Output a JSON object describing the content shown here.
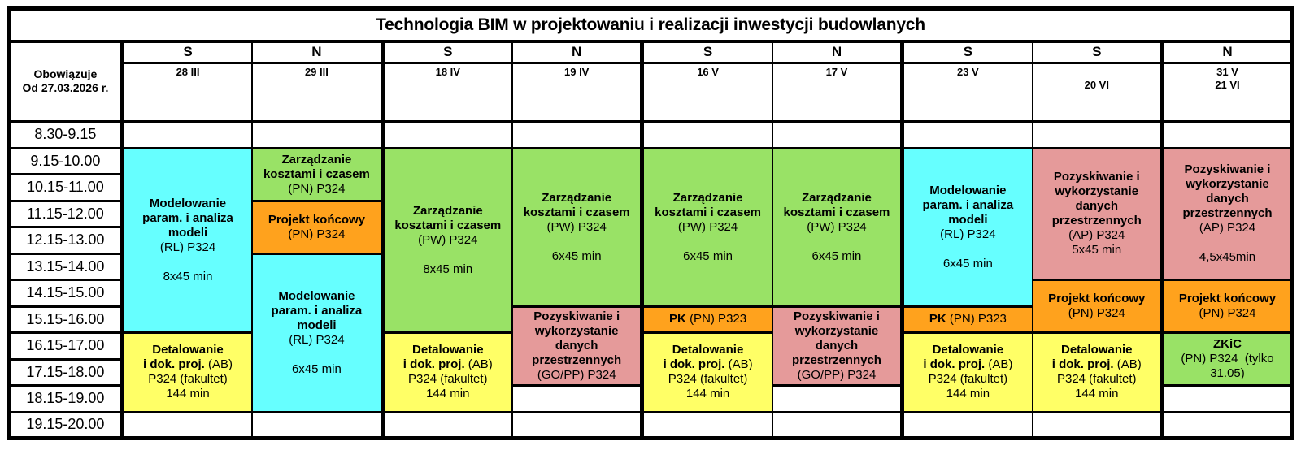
{
  "title": "Technologia BIM w projektowaniu i realizacji inwestycji budowlanych",
  "effective": {
    "line1": "Obowiązuje",
    "line2": "Od 27.03.2026 r."
  },
  "columns": [
    {
      "day": "S",
      "date1": "28 III",
      "date2": ""
    },
    {
      "day": "N",
      "date1": "29 III",
      "date2": ""
    },
    {
      "day": "S",
      "date1": "18 IV",
      "date2": ""
    },
    {
      "day": "N",
      "date1": "19 IV",
      "date2": ""
    },
    {
      "day": "S",
      "date1": "16 V",
      "date2": ""
    },
    {
      "day": "N",
      "date1": "17 V",
      "date2": ""
    },
    {
      "day": "S",
      "date1": "23 V",
      "date2": ""
    },
    {
      "day": "S",
      "date1": "",
      "date2": "20 VI"
    },
    {
      "day": "N",
      "date1": "31 V",
      "date2": "21 VI"
    }
  ],
  "times": [
    "8.30-9.15",
    "9.15-10.00",
    "10.15-11.00",
    "11.15-12.00",
    "12.15-13.00",
    "13.15-14.00",
    "14.15-15.00",
    "15.15-16.00",
    "16.15-17.00",
    "17.15-18.00",
    "18.15-19.00",
    "19.15-20.00"
  ],
  "events": {
    "modelowanie": {
      "name": "Modelowanie param. i analiza modeli",
      "code": "(RL) P324"
    },
    "zarzadzanie": {
      "name": "Zarządzanie kosztami i czasem",
      "code_pn": "(PN) P324",
      "code_pw": "(PW) P324"
    },
    "projekt": {
      "name": "Projekt końcowy",
      "code": "(PN) P324"
    },
    "pozyskiwanie": {
      "name": "Pozyskiwanie i wykorzystanie danych przestrzennych",
      "code_gopp": "(GO/PP) P324",
      "code_ap": "(AP) P324"
    },
    "detalowanie": {
      "l1": "Detalowanie",
      "l2b": "i dok. proj.",
      "l2r": "(AB)",
      "l3": "P324 (fakultet)",
      "l4": "144 min"
    },
    "pk": {
      "name": "PK",
      "code": "(PN) P323"
    },
    "zkic": {
      "name": "ZKiC",
      "code": "(PN) P324  (tylko 31.05)"
    },
    "durations": {
      "x8": "8x45 min",
      "x6": "6x45 min",
      "x5": "5x45 min",
      "x45": "4,5x45min"
    }
  },
  "colors": {
    "cyan": "#66FFFF",
    "green": "#99E266",
    "orange": "#FFA21D",
    "yellow": "#FFFF66",
    "pink": "#E59A9A",
    "border": "#000000"
  }
}
